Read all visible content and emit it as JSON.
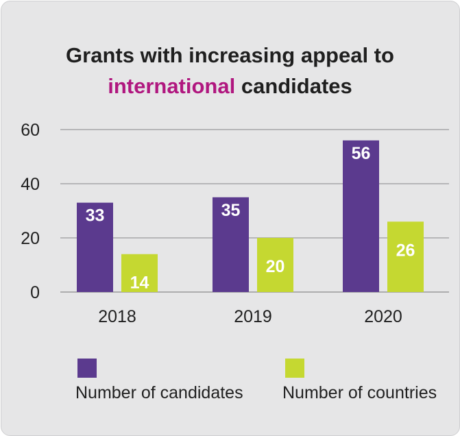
{
  "title": {
    "line1": "Grants with increasing appeal to",
    "line2_highlight": "international",
    "line2_rest": " candidates"
  },
  "colors": {
    "candidates": "#5b3a8e",
    "countries": "#c5d831",
    "highlight": "#b0177f",
    "background": "#e6e6e7",
    "grid": "#9a9a9c"
  },
  "chart_data": {
    "type": "bar",
    "title": "Grants with increasing appeal to international candidates",
    "categories": [
      "2018",
      "2019",
      "2020"
    ],
    "series": [
      {
        "name": "Number of candidates",
        "values": [
          33,
          35,
          56
        ]
      },
      {
        "name": "Number of countries",
        "values": [
          14,
          20,
          26
        ]
      }
    ],
    "ylim": [
      0,
      60
    ],
    "yticks": [
      "0",
      "20",
      "40",
      "60"
    ],
    "xlabel": "",
    "ylabel": "",
    "grid": true,
    "legend": "bottom"
  }
}
